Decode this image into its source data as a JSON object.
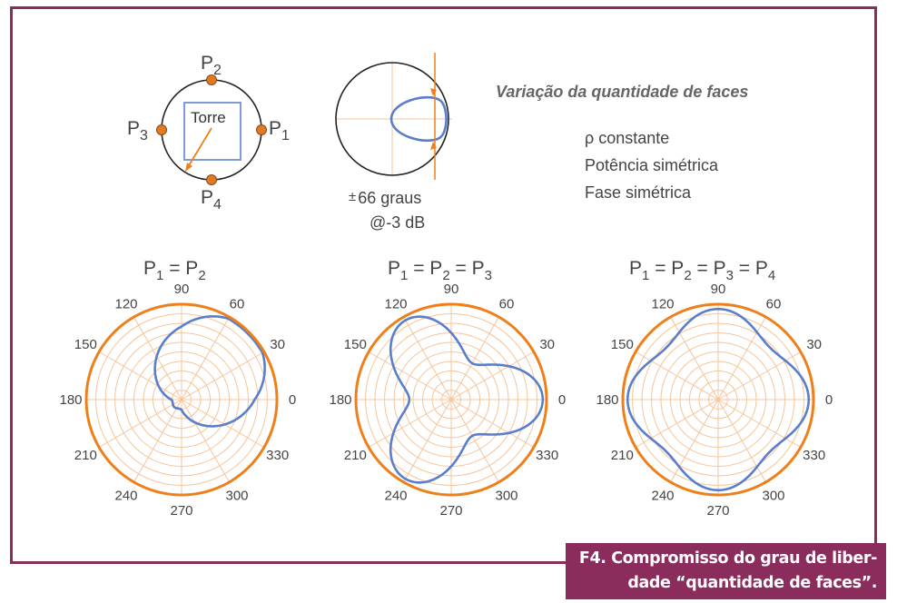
{
  "colors": {
    "accent": "#ef7f1a",
    "pattern": "#5b7ecb",
    "frame": "#8a2c5c",
    "grid": "#f4c59a",
    "text": "#444444"
  },
  "tower": {
    "p1": "P",
    "p1_sub": "1",
    "p2": "P",
    "p2_sub": "2",
    "p3": "P",
    "p3_sub": "3",
    "p4": "P",
    "p4_sub": "4",
    "label": "Torre"
  },
  "beam": {
    "angle_sign": "±",
    "angle_line": "66 graus",
    "level_line": "@-3 dB"
  },
  "info": {
    "title": "Variação da quantidade de faces",
    "line1": "ρ constante",
    "line2": "Potência simétrica",
    "line3": "Fase simétrica"
  },
  "polar": {
    "angle_labels": [
      "0",
      "30",
      "60",
      "90",
      "120",
      "150",
      "180",
      "210",
      "240",
      "270",
      "300",
      "330"
    ],
    "plots": [
      {
        "title_parts": [
          "P",
          "1",
          " = P",
          "2"
        ],
        "faces": 2
      },
      {
        "title_parts": [
          "P",
          "1",
          " = P",
          "2",
          " = P",
          "3"
        ],
        "faces": 3
      },
      {
        "title_parts": [
          "P",
          "1",
          " = P",
          "2",
          " = P",
          "3",
          " = P",
          "4"
        ],
        "faces": 4
      }
    ]
  },
  "caption": {
    "line1": "F4. Compromisso do grau de liber-",
    "line2": "dade “quantidade de faces”."
  }
}
